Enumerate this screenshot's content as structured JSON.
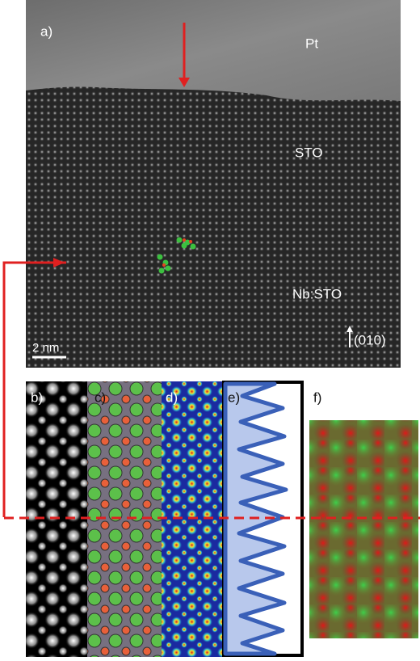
{
  "panel_a": {
    "label": "a)",
    "layers": {
      "top": "Pt",
      "middle": "STO",
      "bottom": "Nb:STO"
    },
    "scale_bar": "2 nm",
    "direction": "(010)"
  },
  "panels": {
    "b": "b)",
    "c": "c)",
    "d": "d)",
    "e": "e)",
    "f": "f)"
  }
}
